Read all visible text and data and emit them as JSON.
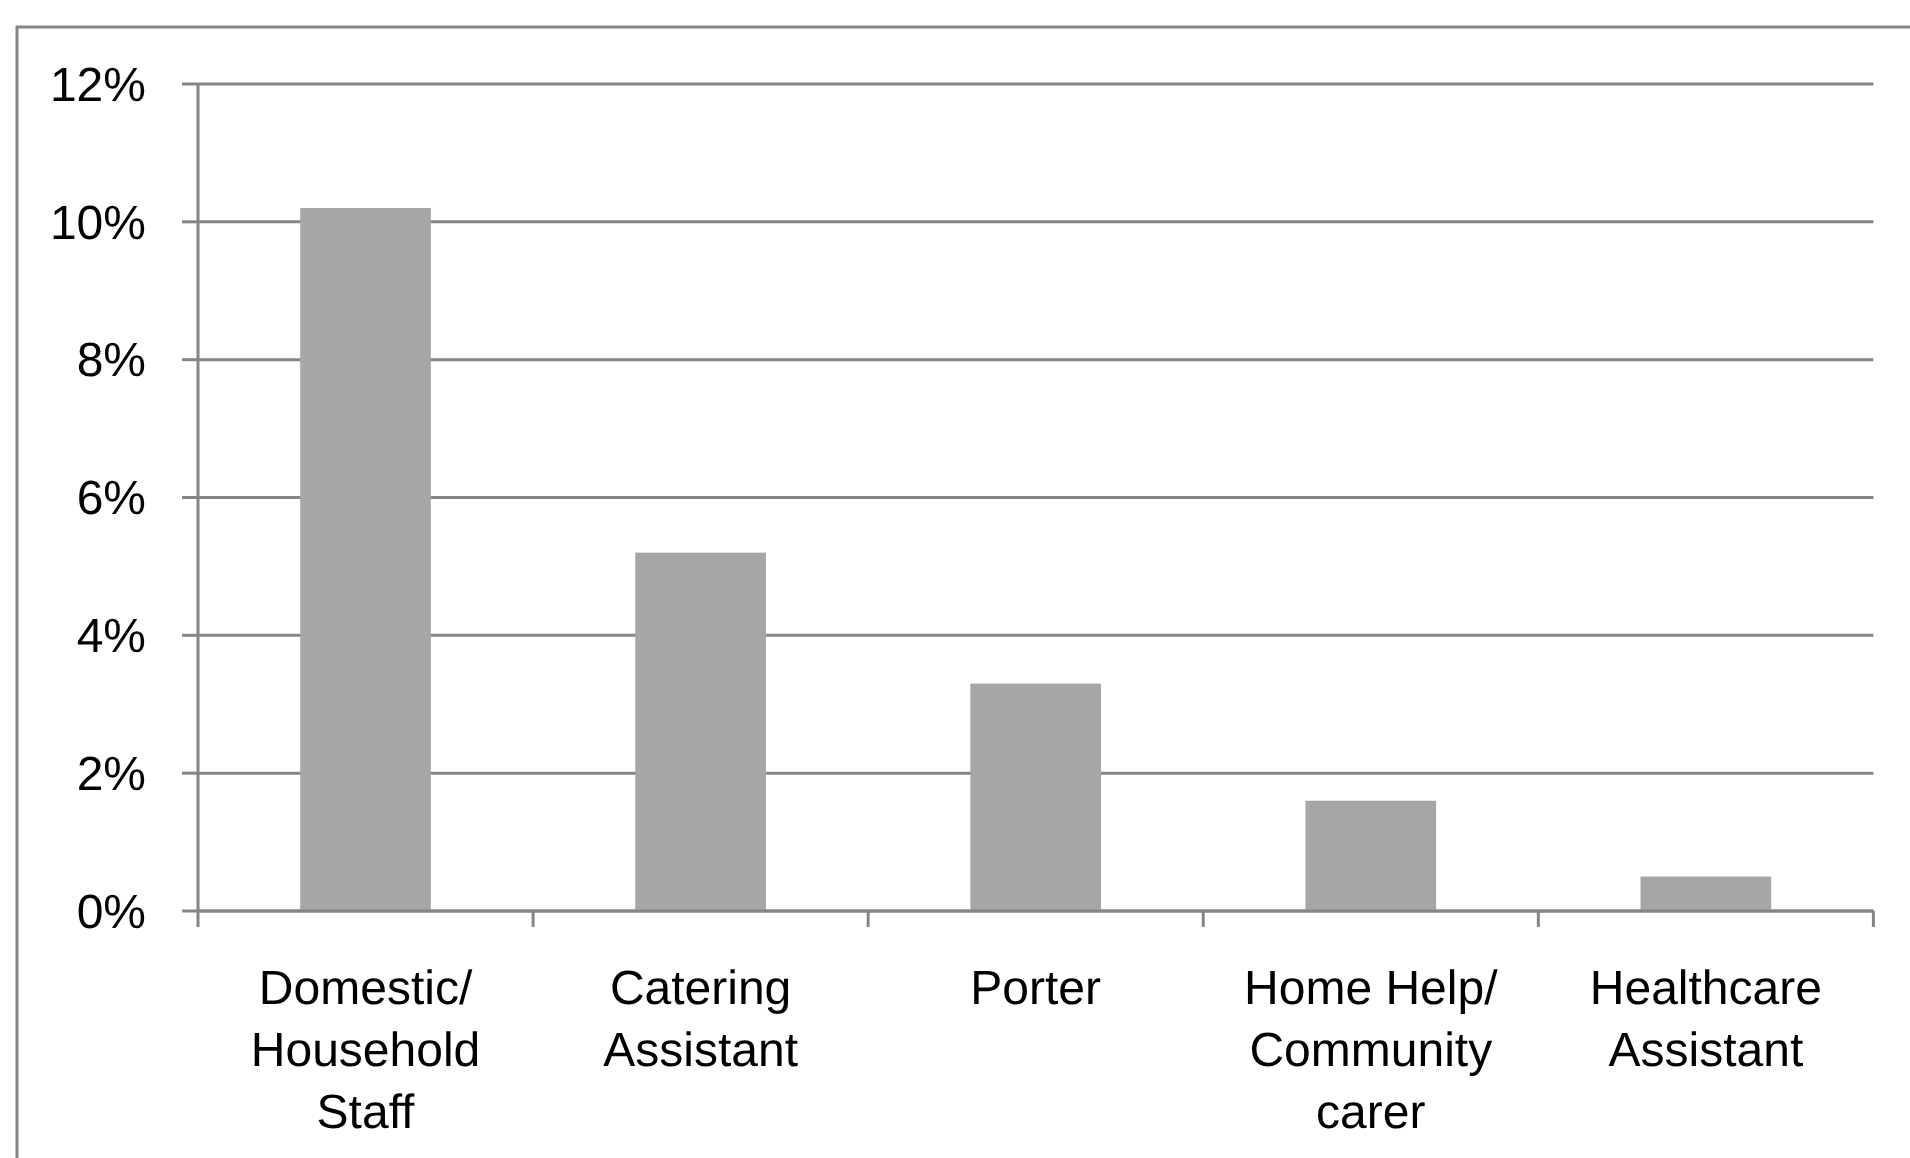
{
  "chart_data": {
    "type": "bar",
    "categories": [
      "Domestic/\nHousehold\nStaff",
      "Catering\nAssistant",
      "Porter",
      "Home Help/\nCommunity\ncarer",
      "Healthcare\nAssistant"
    ],
    "values": [
      10.2,
      5.2,
      3.3,
      1.6,
      0.5
    ],
    "color": "#a6a6a6",
    "ylim": [
      0,
      12
    ],
    "yticks": [
      {
        "value": 0,
        "label": "0%"
      },
      {
        "value": 2,
        "label": "2%"
      },
      {
        "value": 4,
        "label": "4%"
      },
      {
        "value": 6,
        "label": "6%"
      },
      {
        "value": 8,
        "label": "8%"
      },
      {
        "value": 10,
        "label": "10%"
      },
      {
        "value": 12,
        "label": "12%"
      }
    ],
    "grid": "y"
  }
}
